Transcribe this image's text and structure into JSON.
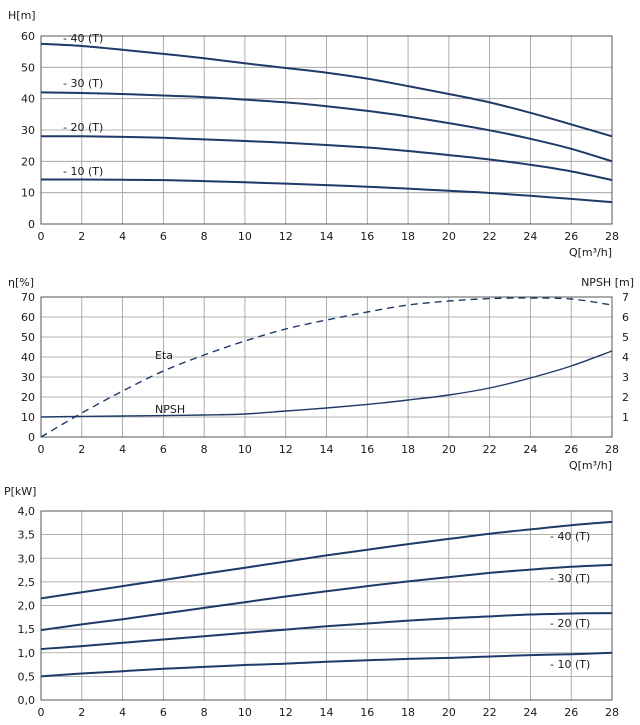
{
  "chart_data": [
    {
      "type": "line",
      "ylabel": "H[m]",
      "xlabel": "Q[m³/h]",
      "xlim": [
        0,
        28
      ],
      "ylim": [
        0,
        60
      ],
      "xticks": [
        "0",
        "2",
        "4",
        "6",
        "8",
        "10",
        "12",
        "14",
        "16",
        "18",
        "20",
        "22",
        "24",
        "26",
        "28"
      ],
      "yticks": [
        "0",
        "10",
        "20",
        "30",
        "40",
        "50",
        "60"
      ],
      "grid": true,
      "color": "#1f3a68",
      "series": [
        {
          "name": "- 40 (T)",
          "x": [
            0,
            2,
            4,
            6,
            8,
            10,
            12,
            14,
            16,
            18,
            20,
            22,
            24,
            26,
            28
          ],
          "values": [
            57.5,
            56.8,
            55.6,
            54.3,
            52.9,
            51.3,
            49.8,
            48.3,
            46.4,
            44.0,
            41.5,
            38.8,
            35.5,
            31.8,
            28.0
          ]
        },
        {
          "name": "- 30 (T)",
          "x": [
            0,
            2,
            4,
            6,
            8,
            10,
            12,
            14,
            16,
            18,
            20,
            22,
            24,
            26,
            28
          ],
          "values": [
            42.0,
            41.8,
            41.5,
            41.0,
            40.5,
            39.7,
            38.8,
            37.6,
            36.1,
            34.3,
            32.2,
            29.9,
            27.2,
            24.0,
            20.0
          ]
        },
        {
          "name": "- 20 (T)",
          "x": [
            0,
            2,
            4,
            6,
            8,
            10,
            12,
            14,
            16,
            18,
            20,
            22,
            24,
            26,
            28
          ],
          "values": [
            28.0,
            28.0,
            27.8,
            27.5,
            27.0,
            26.5,
            25.9,
            25.2,
            24.4,
            23.3,
            22.0,
            20.6,
            18.9,
            16.8,
            14.0
          ]
        },
        {
          "name": "- 10 (T)",
          "x": [
            0,
            2,
            4,
            6,
            8,
            10,
            12,
            14,
            16,
            18,
            20,
            22,
            24,
            26,
            28
          ],
          "values": [
            14.2,
            14.2,
            14.1,
            14.0,
            13.7,
            13.3,
            12.9,
            12.4,
            11.9,
            11.3,
            10.6,
            9.9,
            9.0,
            8.0,
            7.0
          ]
        }
      ]
    },
    {
      "type": "line",
      "ylabel": "η[%]",
      "ylabel2": "NPSH [m]",
      "xlabel": "Q[m³/h]",
      "xlim": [
        0,
        28
      ],
      "ylim": [
        0,
        70
      ],
      "y2lim": [
        0,
        7
      ],
      "xticks": [
        "0",
        "2",
        "4",
        "6",
        "8",
        "10",
        "12",
        "14",
        "16",
        "18",
        "20",
        "22",
        "24",
        "26",
        "28"
      ],
      "yticks": [
        "0",
        "10",
        "20",
        "30",
        "40",
        "50",
        "60",
        "70"
      ],
      "y2ticks": [
        "1",
        "2",
        "3",
        "4",
        "5",
        "6",
        "7"
      ],
      "grid": true,
      "color": "#1f3a68",
      "series": [
        {
          "name": "Eta",
          "axis": "left",
          "dashed": true,
          "x": [
            0,
            2,
            4,
            6,
            8,
            10,
            12,
            14,
            16,
            18,
            20,
            22,
            24,
            26,
            28
          ],
          "values": [
            0,
            12,
            23,
            33,
            41,
            48,
            54,
            58.5,
            62.5,
            66,
            68,
            69.2,
            69.5,
            69,
            66
          ]
        },
        {
          "name": "NPSH",
          "axis": "right",
          "dashed": false,
          "x": [
            0,
            2,
            4,
            6,
            8,
            10,
            12,
            14,
            16,
            18,
            20,
            22,
            24,
            26,
            28
          ],
          "values": [
            1.0,
            1.03,
            1.05,
            1.07,
            1.1,
            1.15,
            1.3,
            1.45,
            1.63,
            1.85,
            2.1,
            2.45,
            2.95,
            3.55,
            4.3
          ]
        }
      ]
    },
    {
      "type": "line",
      "ylabel": "P[kW]",
      "xlim": [
        0,
        28
      ],
      "ylim": [
        0,
        4
      ],
      "xticks": [
        "0",
        "2",
        "4",
        "6",
        "8",
        "10",
        "12",
        "14",
        "16",
        "18",
        "20",
        "22",
        "24",
        "26",
        "28"
      ],
      "yticks": [
        "0,0",
        "0,5",
        "1,0",
        "1,5",
        "2,0",
        "2,5",
        "3,0",
        "3,5",
        "4,0"
      ],
      "grid": true,
      "color": "#1f3a68",
      "series": [
        {
          "name": "- 40 (T)",
          "x": [
            0,
            2,
            4,
            6,
            8,
            10,
            12,
            14,
            16,
            18,
            20,
            22,
            24,
            26,
            28
          ],
          "values": [
            2.15,
            2.28,
            2.41,
            2.54,
            2.67,
            2.8,
            2.93,
            3.06,
            3.18,
            3.3,
            3.41,
            3.52,
            3.61,
            3.7,
            3.77
          ]
        },
        {
          "name": "- 30 (T)",
          "x": [
            0,
            2,
            4,
            6,
            8,
            10,
            12,
            14,
            16,
            18,
            20,
            22,
            24,
            26,
            28
          ],
          "values": [
            1.48,
            1.6,
            1.71,
            1.83,
            1.95,
            2.07,
            2.19,
            2.3,
            2.41,
            2.51,
            2.6,
            2.69,
            2.76,
            2.82,
            2.86
          ]
        },
        {
          "name": "- 20 (T)",
          "x": [
            0,
            2,
            4,
            6,
            8,
            10,
            12,
            14,
            16,
            18,
            20,
            22,
            24,
            26,
            28
          ],
          "values": [
            1.08,
            1.14,
            1.21,
            1.28,
            1.35,
            1.42,
            1.49,
            1.56,
            1.62,
            1.68,
            1.73,
            1.77,
            1.81,
            1.83,
            1.84
          ]
        },
        {
          "name": "- 10 (T)",
          "x": [
            0,
            2,
            4,
            6,
            8,
            10,
            12,
            14,
            16,
            18,
            20,
            22,
            24,
            26,
            28
          ],
          "values": [
            0.5,
            0.56,
            0.61,
            0.66,
            0.7,
            0.74,
            0.77,
            0.81,
            0.84,
            0.87,
            0.89,
            0.92,
            0.95,
            0.97,
            1.0
          ]
        }
      ]
    }
  ]
}
